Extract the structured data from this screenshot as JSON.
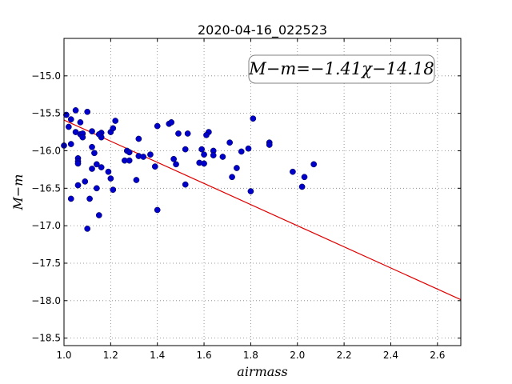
{
  "chart_data": {
    "type": "scatter",
    "title": "2020-04-16_022523",
    "xlabel": "airmass",
    "ylabel": "M−m",
    "xlim": [
      1.0,
      2.7
    ],
    "ylim": [
      -18.6,
      -14.5
    ],
    "x_ticks": [
      "1.0",
      "1.2",
      "1.4",
      "1.6",
      "1.8",
      "2.0",
      "2.2",
      "2.4",
      "2.6"
    ],
    "y_ticks": [
      "−15.0",
      "−15.5",
      "−16.0",
      "−16.5",
      "−17.0",
      "−17.5",
      "−18.0",
      "−18.5"
    ],
    "grid": true,
    "annotation": "M−m=−1.41χ−14.18",
    "fit": {
      "slope": -1.41,
      "intercept": -14.18,
      "color": "#e00000"
    },
    "marker_color": "#0000cc",
    "points": [
      [
        1.01,
        -15.52
      ],
      [
        1.03,
        -15.58
      ],
      [
        1.05,
        -15.46
      ],
      [
        1.07,
        -15.62
      ],
      [
        1.1,
        -15.48
      ],
      [
        1.02,
        -15.68
      ],
      [
        1.05,
        -15.75
      ],
      [
        1.07,
        -15.78
      ],
      [
        1.08,
        -15.77
      ],
      [
        1.08,
        -15.82
      ],
      [
        1.12,
        -15.74
      ],
      [
        1.16,
        -15.76
      ],
      [
        1.16,
        -15.82
      ],
      [
        1.15,
        -15.78
      ],
      [
        1.22,
        -15.6
      ],
      [
        1.2,
        -15.75
      ],
      [
        1.21,
        -15.7
      ],
      [
        1.0,
        -15.93
      ],
      [
        1.03,
        -15.91
      ],
      [
        1.12,
        -15.95
      ],
      [
        1.13,
        -16.03
      ],
      [
        1.06,
        -16.1
      ],
      [
        1.06,
        -16.14
      ],
      [
        1.06,
        -16.17
      ],
      [
        1.12,
        -16.24
      ],
      [
        1.14,
        -16.18
      ],
      [
        1.16,
        -16.22
      ],
      [
        1.19,
        -16.28
      ],
      [
        1.2,
        -16.37
      ],
      [
        1.09,
        -16.41
      ],
      [
        1.06,
        -16.46
      ],
      [
        1.14,
        -16.5
      ],
      [
        1.21,
        -16.52
      ],
      [
        1.03,
        -16.64
      ],
      [
        1.11,
        -16.64
      ],
      [
        1.15,
        -16.86
      ],
      [
        1.1,
        -17.04
      ],
      [
        1.27,
        -16.0
      ],
      [
        1.28,
        -16.02
      ],
      [
        1.26,
        -16.13
      ],
      [
        1.28,
        -16.13
      ],
      [
        1.32,
        -15.84
      ],
      [
        1.32,
        -16.07
      ],
      [
        1.34,
        -16.08
      ],
      [
        1.37,
        -16.05
      ],
      [
        1.39,
        -16.21
      ],
      [
        1.31,
        -16.39
      ],
      [
        1.4,
        -15.67
      ],
      [
        1.45,
        -15.64
      ],
      [
        1.46,
        -15.62
      ],
      [
        1.49,
        -15.77
      ],
      [
        1.47,
        -16.11
      ],
      [
        1.48,
        -16.18
      ],
      [
        1.53,
        -15.77
      ],
      [
        1.52,
        -15.98
      ],
      [
        1.52,
        -16.45
      ],
      [
        1.4,
        -16.79
      ],
      [
        1.58,
        -16.16
      ],
      [
        1.59,
        -15.98
      ],
      [
        1.6,
        -16.05
      ],
      [
        1.6,
        -16.17
      ],
      [
        1.62,
        -15.75
      ],
      [
        1.61,
        -15.79
      ],
      [
        1.64,
        -16.0
      ],
      [
        1.64,
        -16.06
      ],
      [
        1.68,
        -16.08
      ],
      [
        1.71,
        -15.89
      ],
      [
        1.72,
        -16.35
      ],
      [
        1.74,
        -16.23
      ],
      [
        1.76,
        -16.01
      ],
      [
        1.79,
        -15.97
      ],
      [
        1.81,
        -15.57
      ],
      [
        1.8,
        -16.54
      ],
      [
        1.88,
        -15.89
      ],
      [
        1.88,
        -15.92
      ],
      [
        1.98,
        -16.28
      ],
      [
        2.02,
        -16.48
      ],
      [
        2.03,
        -16.35
      ],
      [
        2.07,
        -16.18
      ]
    ]
  }
}
